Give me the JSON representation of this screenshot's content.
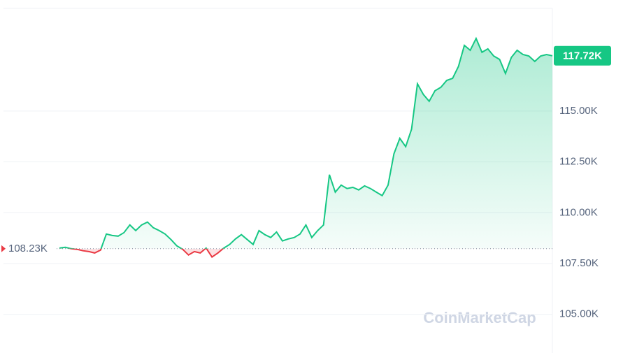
{
  "chart_data": {
    "type": "line",
    "watermark": "CoinMarketCap",
    "ylim": [
      103100,
      120050
    ],
    "yticks": [
      {
        "value": 105000,
        "label": "105.00K"
      },
      {
        "value": 107500,
        "label": "107.50K"
      },
      {
        "value": 110000,
        "label": "110.00K"
      },
      {
        "value": 112500,
        "label": "112.50K"
      },
      {
        "value": 115000,
        "label": "115.00K"
      }
    ],
    "grid": true,
    "baseline": {
      "value": 108230,
      "label": "108.23K"
    },
    "last": {
      "value": 117720,
      "label": "117.72K"
    },
    "up_color": "#16c784",
    "down_color": "#ea3943",
    "values": [
      108260,
      108300,
      108230,
      108200,
      108130,
      108090,
      108020,
      108160,
      108950,
      108880,
      108850,
      109020,
      109400,
      109120,
      109400,
      109540,
      109260,
      109120,
      108950,
      108680,
      108370,
      108200,
      107920,
      108090,
      108020,
      108260,
      107820,
      108020,
      108260,
      108440,
      108710,
      108920,
      108680,
      108440,
      109120,
      108920,
      108780,
      109050,
      108610,
      108710,
      108780,
      108950,
      109400,
      108780,
      109120,
      109400,
      111870,
      111010,
      111360,
      111190,
      111250,
      111120,
      111320,
      111190,
      111010,
      110840,
      111360,
      112900,
      113660,
      113250,
      114110,
      116340,
      115820,
      115480,
      116000,
      116170,
      116510,
      116610,
      117200,
      118230,
      117990,
      118570,
      117890,
      118060,
      117710,
      117540,
      116850,
      117640,
      117990,
      117780,
      117710,
      117440,
      117710,
      117780,
      117720
    ]
  }
}
